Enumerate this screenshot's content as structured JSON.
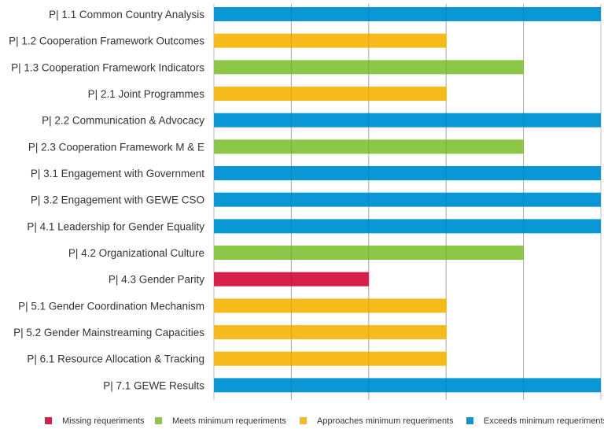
{
  "chart_data": {
    "type": "bar",
    "orientation": "horizontal",
    "title": "",
    "xlabel": "",
    "ylabel": "",
    "xlim": [
      0,
      5
    ],
    "grid": true,
    "legend_position": "bottom",
    "categories": [
      "P| 1.1 Common Country Analysis",
      "P| 1.2 Cooperation Framework Outcomes",
      "P| 1.3 Cooperation Framework Indicators",
      "P| 2.1 Joint Programmes",
      "P| 2.2 Communication & Advocacy",
      "P| 2.3 Cooperation Framework M & E",
      "P| 3.1 Engagement with Government",
      "P| 3.2 Engagement with GEWE CSO",
      "P| 4.1 Leadership for Gender Equality",
      "P| 4.2 Organizational Culture",
      "P| 4.3 Gender Parity",
      "P| 5.1 Gender Coordination Mechanism",
      "P| 5.2 Gender Mainstreaming Capacities",
      "P| 6.1 Resource Allocation & Tracking",
      "P| 7.1 GEWE Results"
    ],
    "values": [
      5,
      3,
      4,
      3,
      5,
      4,
      5,
      5,
      5,
      4,
      2,
      3,
      3,
      3,
      5
    ],
    "status": [
      "exceeds",
      "approaches",
      "meets",
      "approaches",
      "exceeds",
      "meets",
      "exceeds",
      "exceeds",
      "exceeds",
      "meets",
      "missing",
      "approaches",
      "approaches",
      "approaches",
      "exceeds"
    ],
    "legend": [
      {
        "key": "missing",
        "label": "Missing requeriments",
        "color": "#d61f4b"
      },
      {
        "key": "meets",
        "label": "Meets minimum requeriments",
        "color": "#8cc747"
      },
      {
        "key": "approaches",
        "label": "Approaches minimum requeriments",
        "color": "#f7bb1c"
      },
      {
        "key": "exceeds",
        "label": "Exceeds minimum requeriments",
        "color": "#0a97d6"
      }
    ]
  }
}
